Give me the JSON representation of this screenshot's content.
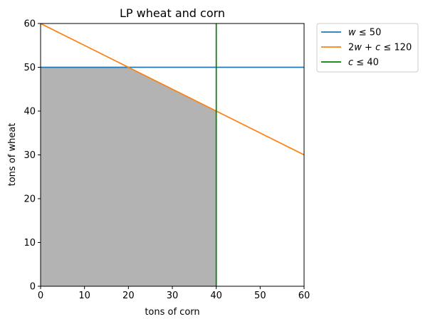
{
  "chart_data": {
    "type": "line",
    "title": "LP wheat and corn",
    "xlabel": "tons of corn",
    "ylabel": "tons of wheat",
    "xlim": [
      0,
      60
    ],
    "ylim": [
      0,
      60
    ],
    "xticks": [
      0,
      10,
      20,
      30,
      40,
      50,
      60
    ],
    "yticks": [
      0,
      10,
      20,
      30,
      40,
      50,
      60
    ],
    "grid": false,
    "legend_position": "outside-top-right",
    "series": [
      {
        "name": "w ≤ 50",
        "name_parts": [
          [
            "w",
            true
          ],
          [
            " ≤ 50",
            false
          ]
        ],
        "color": "#1f77b4",
        "x": [
          0,
          60
        ],
        "y": [
          50,
          50
        ]
      },
      {
        "name": "2w + c ≤ 120",
        "name_parts": [
          [
            "2",
            false
          ],
          [
            "w",
            true
          ],
          [
            " + ",
            false
          ],
          [
            "c",
            true
          ],
          [
            " ≤ 120",
            false
          ]
        ],
        "color": "#ff7f0e",
        "x": [
          0,
          60
        ],
        "y": [
          60,
          30
        ]
      },
      {
        "name": "c ≤ 40",
        "name_parts": [
          [
            "c",
            true
          ],
          [
            " ≤ 40",
            false
          ]
        ],
        "color": "#008000",
        "x": [
          40,
          40
        ],
        "y": [
          0,
          60
        ]
      }
    ],
    "feasible_region": {
      "color": "#b3b3b3",
      "polygon": [
        [
          0,
          0
        ],
        [
          0,
          50
        ],
        [
          20,
          50
        ],
        [
          40,
          40
        ],
        [
          40,
          0
        ]
      ]
    }
  }
}
